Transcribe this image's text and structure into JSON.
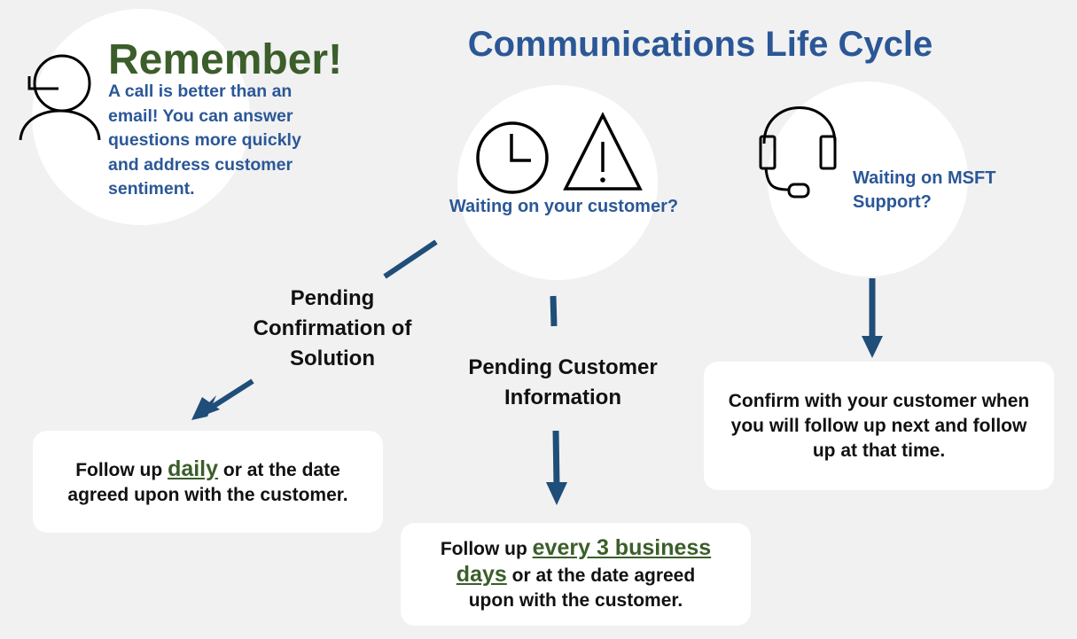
{
  "title": "Communications Life Cycle",
  "remember": {
    "heading": "Remember!",
    "text": "A call is better than an email! You can answer questions more quickly and address customer sentiment."
  },
  "customer_wait": {
    "label": "Waiting on your customer?"
  },
  "msft_wait": {
    "label": "Waiting on MSFT Support?"
  },
  "states": {
    "pending_confirmation": "Pending Confirmation of Solution",
    "pending_information": "Pending Customer Information"
  },
  "actions": {
    "daily": {
      "prefix": "Follow up",
      "highlight": "daily",
      "suffix": "or at the date agreed upon with the customer."
    },
    "business_days": {
      "prefix": "Follow up",
      "highlight": "every 3 business days",
      "suffix": "or at the date agreed upon with the customer."
    },
    "confirm": {
      "text": "Confirm with your customer when you will follow up next and follow up at that time."
    }
  },
  "colors": {
    "title": "#2b5797",
    "highlight": "#3b5e2a",
    "arrow": "#1f4e79",
    "background": "#f1f1f1"
  }
}
